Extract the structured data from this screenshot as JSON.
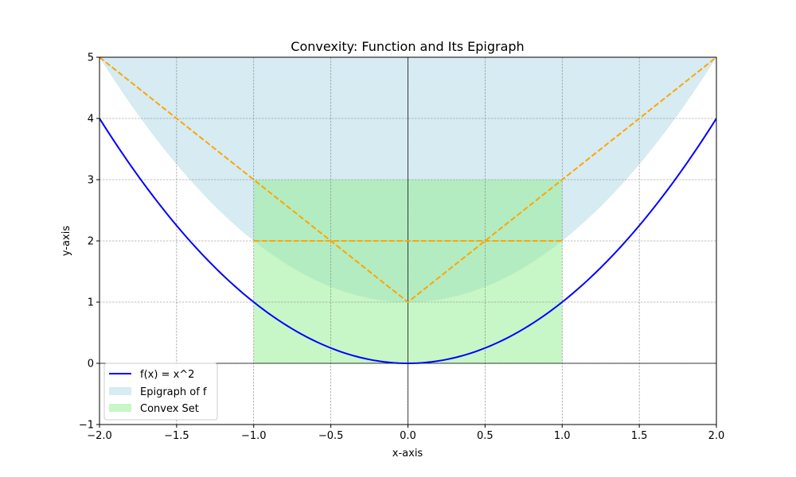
{
  "chart_data": {
    "type": "line",
    "title": "Convexity: Function and Its Epigraph",
    "xlabel": "x-axis",
    "ylabel": "y-axis",
    "xlim": [
      -2,
      2
    ],
    "ylim": [
      -1,
      5
    ],
    "xticks": [
      -2.0,
      -1.5,
      -1.0,
      -0.5,
      0.0,
      0.5,
      1.0,
      1.5,
      2.0
    ],
    "xtick_labels": [
      "−2.0",
      "−1.5",
      "−1.0",
      "−0.5",
      "0.0",
      "0.5",
      "1.0",
      "1.5",
      "2.0"
    ],
    "yticks": [
      -1,
      0,
      1,
      2,
      3,
      4,
      5
    ],
    "ytick_labels": [
      "−1",
      "0",
      "1",
      "2",
      "3",
      "4",
      "5"
    ],
    "grid": true,
    "legend_position": "bottom-left",
    "function": {
      "name": "f(x) = x^2",
      "color": "#0000ff",
      "x": [
        -2.0,
        -1.75,
        -1.5,
        -1.25,
        -1.0,
        -0.75,
        -0.5,
        -0.25,
        0.0,
        0.25,
        0.5,
        0.75,
        1.0,
        1.25,
        1.5,
        1.75,
        2.0
      ],
      "y": [
        4.0,
        3.0625,
        2.25,
        1.5625,
        1.0,
        0.5625,
        0.25,
        0.0625,
        0.0,
        0.0625,
        0.25,
        0.5625,
        1.0,
        1.5625,
        2.25,
        3.0625,
        4.0
      ]
    },
    "epigraph": {
      "name": "Epigraph of f",
      "color": "#add8e6",
      "lower_x": [
        -2.0,
        -1.75,
        -1.5,
        -1.25,
        -1.0,
        -0.75,
        -0.5,
        -0.25,
        0.0,
        0.25,
        0.5,
        0.75,
        1.0,
        1.25,
        1.5,
        1.75,
        2.0
      ],
      "lower_y": [
        5.0,
        4.0625,
        3.25,
        2.5625,
        2.0,
        1.5625,
        1.25,
        1.0625,
        1.0,
        1.0625,
        1.25,
        1.5625,
        2.0,
        2.5625,
        3.25,
        4.0625,
        5.0
      ],
      "upper_y": 5
    },
    "convex_set": {
      "name": "Convex Set",
      "color": "#90ee90",
      "x": [
        -1,
        1
      ],
      "y": [
        0,
        3
      ]
    },
    "dashed_lines": {
      "color": "#ffa500",
      "segments": [
        {
          "x": [
            -2,
            0,
            2
          ],
          "y": [
            5,
            1,
            5
          ]
        },
        {
          "x": [
            -1,
            1
          ],
          "y": [
            2,
            2
          ]
        }
      ]
    }
  }
}
